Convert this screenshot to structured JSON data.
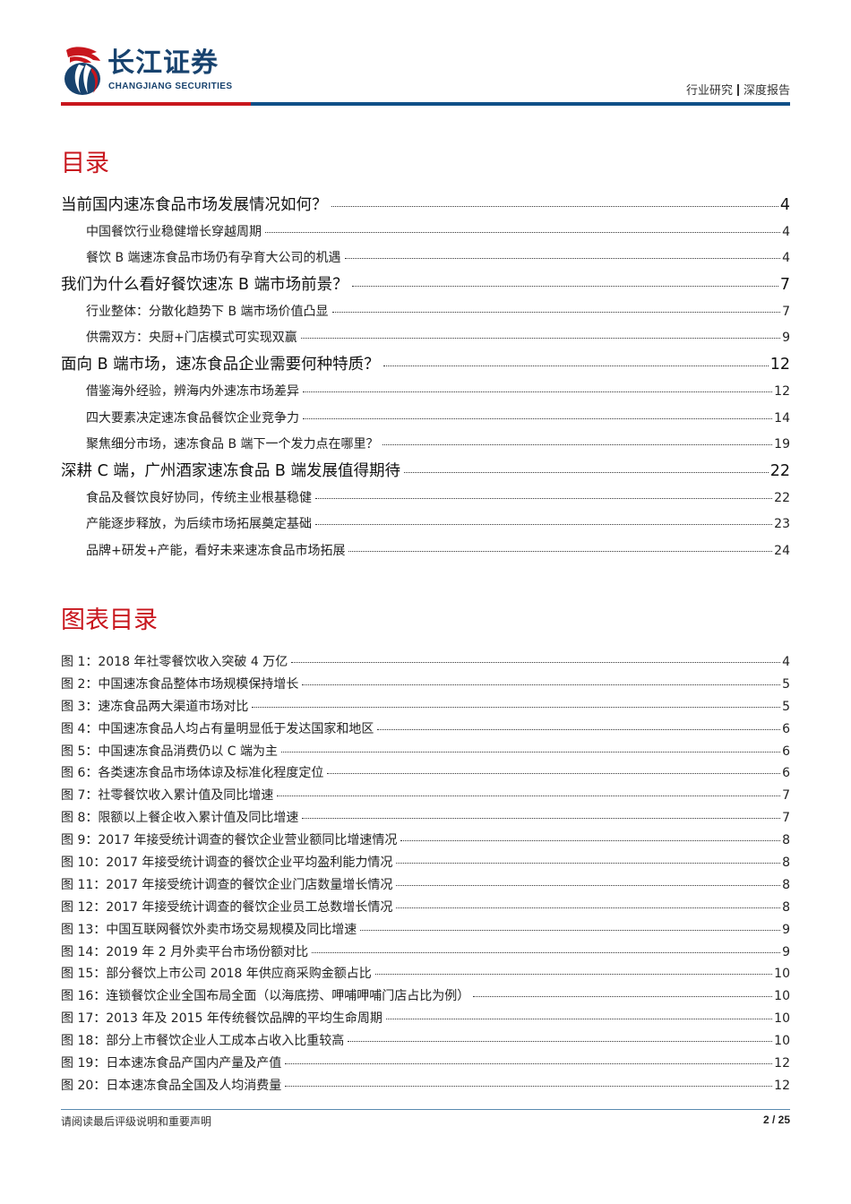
{
  "header": {
    "logo_cn": "长江证券",
    "logo_en": "CHANGJIANG SECURITIES",
    "report_category": "行业研究",
    "report_type": "深度报告",
    "colors": {
      "red": "#c8161d",
      "blue": "#0f4f87",
      "logo_blue": "#17426e"
    }
  },
  "toc": {
    "title": "目录",
    "items": [
      {
        "level": 1,
        "label": "当前国内速冻食品市场发展情况如何？",
        "page": "4"
      },
      {
        "level": 2,
        "label": "中国餐饮行业稳健增长穿越周期",
        "page": "4"
      },
      {
        "level": 2,
        "label": "餐饮 B 端速冻食品市场仍有孕育大公司的机遇",
        "page": "4"
      },
      {
        "level": 1,
        "label": "我们为什么看好餐饮速冻 B 端市场前景？",
        "page": "7"
      },
      {
        "level": 2,
        "label": "行业整体：分散化趋势下 B 端市场价值凸显",
        "page": "7"
      },
      {
        "level": 2,
        "label": "供需双方：央厨+门店模式可实现双赢",
        "page": "9"
      },
      {
        "level": 1,
        "label": "面向 B 端市场，速冻食品企业需要何种特质？",
        "page": "12"
      },
      {
        "level": 2,
        "label": "借鉴海外经验，辨海内外速冻市场差异",
        "page": "12"
      },
      {
        "level": 2,
        "label": "四大要素决定速冻食品餐饮企业竞争力",
        "page": "14"
      },
      {
        "level": 2,
        "label": "聚焦细分市场，速冻食品 B 端下一个发力点在哪里？",
        "page": "19"
      },
      {
        "level": 1,
        "label": "深耕 C 端，广州酒家速冻食品 B 端发展值得期待",
        "page": "22"
      },
      {
        "level": 2,
        "label": "食品及餐饮良好协同，传统主业根基稳健",
        "page": "22"
      },
      {
        "level": 2,
        "label": "产能逐步释放，为后续市场拓展奠定基础",
        "page": "23"
      },
      {
        "level": 2,
        "label": "品牌+研发+产能，看好未来速冻食品市场拓展",
        "page": "24"
      }
    ]
  },
  "figures": {
    "title": "图表目录",
    "items": [
      {
        "label": "图 1：2018 年社零餐饮收入突破 4 万亿",
        "page": "4"
      },
      {
        "label": "图 2：中国速冻食品整体市场规模保持增长",
        "page": "5"
      },
      {
        "label": "图 3：速冻食品两大渠道市场对比",
        "page": "5"
      },
      {
        "label": "图 4：中国速冻食品人均占有量明显低于发达国家和地区",
        "page": "6"
      },
      {
        "label": "图 5：中国速冻食品消费仍以 C 端为主",
        "page": "6"
      },
      {
        "label": "图 6：各类速冻食品市场体谅及标准化程度定位",
        "page": "6"
      },
      {
        "label": "图 7：社零餐饮收入累计值及同比增速",
        "page": "7"
      },
      {
        "label": "图 8：限额以上餐企收入累计值及同比增速",
        "page": "7"
      },
      {
        "label": "图 9：2017 年接受统计调查的餐饮企业营业额同比增速情况",
        "page": "8"
      },
      {
        "label": "图 10：2017 年接受统计调查的餐饮企业平均盈利能力情况",
        "page": "8"
      },
      {
        "label": "图 11：2017 年接受统计调查的餐饮企业门店数量增长情况",
        "page": "8"
      },
      {
        "label": "图 12：2017 年接受统计调查的餐饮企业员工总数增长情况",
        "page": "8"
      },
      {
        "label": "图 13：中国互联网餐饮外卖市场交易规模及同比增速",
        "page": "9"
      },
      {
        "label": "图 14：2019 年 2 月外卖平台市场份额对比",
        "page": "9"
      },
      {
        "label": "图 15：部分餐饮上市公司 2018 年供应商采购金额占比",
        "page": "10"
      },
      {
        "label": "图 16：连锁餐饮企业全国布局全面（以海底捞、呷哺呷哺门店占比为例）",
        "page": "10"
      },
      {
        "label": "图 17：2013 年及 2015 年传统餐饮品牌的平均生命周期",
        "page": "10"
      },
      {
        "label": "图 18：部分上市餐饮企业人工成本占收入比重较高",
        "page": "10"
      },
      {
        "label": "图 19：日本速冻食品产国内产量及产值",
        "page": "12"
      },
      {
        "label": "图 20：日本速冻食品全国及人均消费量",
        "page": "12"
      }
    ]
  },
  "footer": {
    "disclaimer": "请阅读最后评级说明和重要声明",
    "page_number": "2 / 25"
  }
}
